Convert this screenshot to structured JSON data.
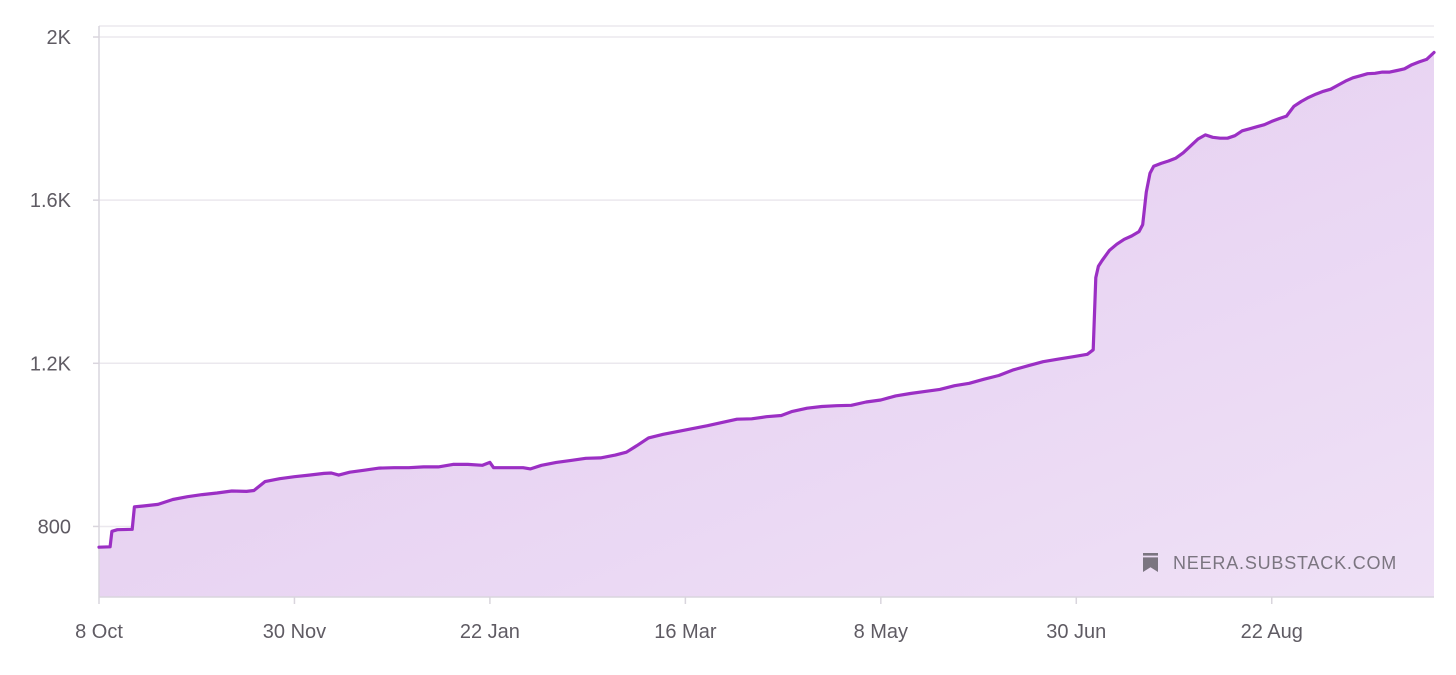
{
  "watermark": {
    "text": "NEERA.SUBSTACK.COM",
    "icon": "substack-bookmark-icon"
  },
  "colors": {
    "line": "#9b2fc4",
    "area_top": "#e2c8ef",
    "area_bottom": "#efe1f6",
    "grid": "#ebe8ee",
    "axis": "#d9d5dd",
    "tick_text": "#5f5b63",
    "watermark": "#7b7580"
  },
  "chart_data": {
    "type": "area",
    "title": "",
    "xlabel": "",
    "ylabel": "",
    "grid": true,
    "legend": "none",
    "x_ticks": [
      "8 Oct",
      "30 Nov",
      "22 Jan",
      "16 Mar",
      "8 May",
      "30 Jun",
      "22 Aug"
    ],
    "y_ticks": [
      "800",
      "1.2K",
      "1.6K",
      "2K"
    ],
    "y_tick_values": [
      800,
      1200,
      1600,
      2000
    ],
    "ylim": [
      627,
      2027
    ],
    "xlim_days": [
      0,
      362
    ],
    "series": [
      {
        "points": [
          [
            0,
            749
          ],
          [
            3,
            750
          ],
          [
            3.5,
            788
          ],
          [
            5,
            792
          ],
          [
            9,
            793
          ],
          [
            9.6,
            848
          ],
          [
            12,
            850
          ],
          [
            16,
            854
          ],
          [
            20,
            866
          ],
          [
            24,
            873
          ],
          [
            28,
            878
          ],
          [
            32,
            882
          ],
          [
            36,
            887
          ],
          [
            40,
            886
          ],
          [
            42,
            888
          ],
          [
            45,
            910
          ],
          [
            49,
            917
          ],
          [
            53,
            922
          ],
          [
            57,
            926
          ],
          [
            61,
            930
          ],
          [
            63,
            931
          ],
          [
            65,
            926
          ],
          [
            68,
            933
          ],
          [
            72,
            938
          ],
          [
            76,
            943
          ],
          [
            80,
            944
          ],
          [
            84,
            944
          ],
          [
            88,
            946
          ],
          [
            92,
            946
          ],
          [
            96,
            952
          ],
          [
            100,
            952
          ],
          [
            104,
            950
          ],
          [
            106,
            957
          ],
          [
            107,
            944
          ],
          [
            110,
            944
          ],
          [
            115,
            944
          ],
          [
            117,
            941
          ],
          [
            120,
            950
          ],
          [
            124,
            957
          ],
          [
            128,
            962
          ],
          [
            132,
            967
          ],
          [
            136,
            968
          ],
          [
            140,
            975
          ],
          [
            143,
            982
          ],
          [
            146,
            999
          ],
          [
            149,
            1017
          ],
          [
            153,
            1026
          ],
          [
            157,
            1033
          ],
          [
            161,
            1040
          ],
          [
            165,
            1047
          ],
          [
            169,
            1055
          ],
          [
            173,
            1063
          ],
          [
            177,
            1064
          ],
          [
            181,
            1069
          ],
          [
            185,
            1072
          ],
          [
            188,
            1082
          ],
          [
            192,
            1090
          ],
          [
            196,
            1094
          ],
          [
            200,
            1096
          ],
          [
            204,
            1097
          ],
          [
            208,
            1105
          ],
          [
            212,
            1110
          ],
          [
            216,
            1120
          ],
          [
            220,
            1126
          ],
          [
            224,
            1131
          ],
          [
            228,
            1136
          ],
          [
            232,
            1145
          ],
          [
            236,
            1151
          ],
          [
            240,
            1161
          ],
          [
            244,
            1170
          ],
          [
            248,
            1184
          ],
          [
            252,
            1194
          ],
          [
            256,
            1204
          ],
          [
            260,
            1210
          ],
          [
            264,
            1216
          ],
          [
            268,
            1222
          ],
          [
            269.6,
            1233
          ],
          [
            270.3,
            1410
          ],
          [
            271,
            1438
          ],
          [
            272,
            1452
          ],
          [
            274,
            1477
          ],
          [
            276,
            1492
          ],
          [
            278,
            1504
          ],
          [
            280,
            1512
          ],
          [
            282,
            1523
          ],
          [
            283,
            1540
          ],
          [
            284,
            1620
          ],
          [
            285,
            1666
          ],
          [
            286,
            1683
          ],
          [
            288,
            1690
          ],
          [
            290,
            1696
          ],
          [
            292,
            1703
          ],
          [
            294,
            1716
          ],
          [
            296,
            1733
          ],
          [
            298,
            1750
          ],
          [
            300,
            1760
          ],
          [
            302,
            1754
          ],
          [
            304,
            1752
          ],
          [
            306,
            1752
          ],
          [
            308,
            1758
          ],
          [
            310,
            1770
          ],
          [
            312,
            1775
          ],
          [
            314,
            1780
          ],
          [
            316,
            1785
          ],
          [
            318,
            1793
          ],
          [
            320,
            1800
          ],
          [
            322,
            1806
          ],
          [
            324,
            1830
          ],
          [
            326,
            1842
          ],
          [
            328,
            1852
          ],
          [
            330,
            1860
          ],
          [
            332,
            1867
          ],
          [
            334,
            1872
          ],
          [
            336,
            1882
          ],
          [
            338,
            1892
          ],
          [
            340,
            1900
          ],
          [
            342,
            1905
          ],
          [
            344,
            1910
          ],
          [
            346,
            1911
          ],
          [
            348,
            1914
          ],
          [
            350,
            1914
          ],
          [
            352,
            1918
          ],
          [
            354,
            1922
          ],
          [
            356,
            1932
          ],
          [
            358,
            1939
          ],
          [
            360,
            1945
          ],
          [
            362,
            1962
          ]
        ]
      }
    ]
  }
}
